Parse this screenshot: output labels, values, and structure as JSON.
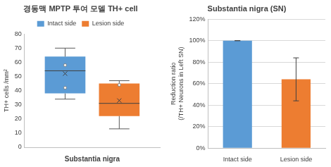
{
  "chart_data": [
    {
      "type": "box",
      "title": "경동맥 MPTP 투여 모델 TH+ cell",
      "categories": [
        "Substantia nigra"
      ],
      "y_label": "TH+ cells /mm²",
      "ylim": [
        0,
        80
      ],
      "yticks": [
        0,
        10,
        20,
        30,
        40,
        50,
        60,
        70,
        80
      ],
      "grid": false,
      "legend": "top",
      "series": [
        {
          "name": "Intact side",
          "color": "#5b9bd5",
          "min": 34,
          "q1": 38,
          "median": 54,
          "q3": 64,
          "max": 70,
          "mean": 52,
          "points": [
            58,
            42
          ]
        },
        {
          "name": "Lesion side",
          "color": "#ed7d31",
          "min": 13,
          "q1": 22,
          "median": 31,
          "q3": 45,
          "max": 47,
          "mean": 33,
          "points": [
            44
          ]
        }
      ]
    },
    {
      "type": "bar",
      "title": "Substantia nigra (SN)",
      "categories": [
        "Intact side",
        "Lesion side"
      ],
      "values": [
        100,
        64
      ],
      "errors": [
        0,
        20
      ],
      "colors": [
        "#5b9bd5",
        "#ed7d31"
      ],
      "y_label": [
        "Reduction ratio",
        "(/TH+ Neurons in Left SN)"
      ],
      "ylim": [
        0,
        120
      ],
      "yticks": [
        {
          "value": 0,
          "label": "0%"
        },
        {
          "value": 20,
          "label": "20%"
        },
        {
          "value": 40,
          "label": "40%"
        },
        {
          "value": 60,
          "label": "60%"
        },
        {
          "value": 80,
          "label": "80%"
        },
        {
          "value": 100,
          "label": "100%"
        },
        {
          "value": 120,
          "label": "120%"
        }
      ],
      "grid": true
    }
  ]
}
